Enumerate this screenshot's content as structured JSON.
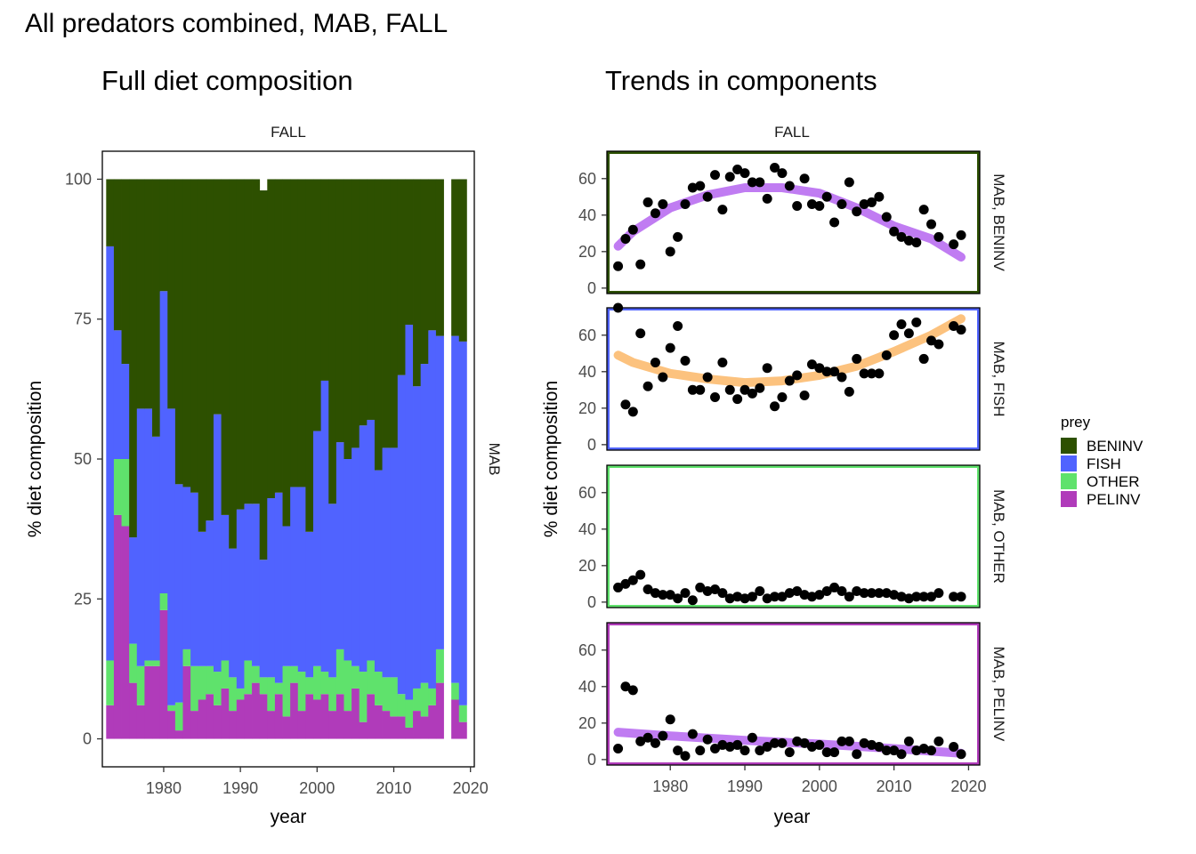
{
  "title": "All predators combined, MAB, FALL",
  "colors": {
    "BENINV": "#2d5000",
    "FISH": "#5063ff",
    "OTHER": "#5fe26c",
    "PELINV": "#b03bba",
    "trend_purple": "#c07cf2",
    "trend_orange": "#fcc27e"
  },
  "chart_data": [
    {
      "type": "bar",
      "stacked": true,
      "title": "Full diet composition",
      "facet_col": "FALL",
      "facet_row": "MAB",
      "xlabel": "year",
      "ylabel": "% diet composition",
      "xlim": [
        1972,
        2020.5
      ],
      "ylim": [
        -5,
        105
      ],
      "x_ticks": [
        "1980",
        "1990",
        "2000",
        "2010",
        "2020"
      ],
      "y_ticks": [
        "0",
        "25",
        "50",
        "75",
        "100"
      ],
      "years": [
        1973,
        1974,
        1975,
        1976,
        1977,
        1978,
        1979,
        1980,
        1981,
        1982,
        1983,
        1984,
        1985,
        1986,
        1987,
        1988,
        1989,
        1990,
        1991,
        1992,
        1993,
        1994,
        1995,
        1996,
        1997,
        1998,
        1999,
        2000,
        2001,
        2002,
        2003,
        2004,
        2005,
        2006,
        2007,
        2008,
        2009,
        2010,
        2011,
        2012,
        2013,
        2014,
        2015,
        2016,
        2018,
        2019
      ],
      "series": [
        {
          "name": "PELINV",
          "values": [
            6,
            40,
            38,
            10,
            6,
            13,
            13,
            23,
            5,
            1.5,
            13,
            5,
            7,
            8,
            6,
            9,
            5,
            7,
            8,
            10,
            8,
            5,
            8,
            4,
            10,
            5,
            8,
            7,
            8,
            5,
            8,
            5,
            9,
            3,
            8,
            6,
            5,
            4,
            4,
            2,
            5,
            4,
            6,
            10,
            7,
            3
          ]
        },
        {
          "name": "OTHER",
          "values": [
            8,
            10,
            12,
            7,
            7,
            1,
            1,
            3,
            1,
            5,
            3,
            8,
            6,
            5,
            6,
            5,
            6,
            2,
            6,
            3,
            3,
            6,
            2,
            9,
            3,
            7,
            3,
            6,
            4,
            6,
            8,
            9,
            4,
            9,
            6,
            6,
            6,
            7,
            4,
            5,
            4,
            6,
            3,
            6,
            3,
            3
          ]
        },
        {
          "name": "FISH",
          "values": [
            74,
            23,
            17,
            19,
            46,
            45,
            40,
            54,
            53,
            39,
            29,
            31,
            24,
            26,
            46,
            26,
            23,
            32,
            28,
            29,
            21,
            32,
            34,
            25,
            32,
            33,
            26,
            42,
            52,
            31,
            37,
            36,
            39,
            44,
            43,
            36,
            41,
            41,
            57,
            67,
            54,
            57,
            64,
            56,
            62,
            65
          ]
        },
        {
          "name": "BENINV",
          "values": [
            12,
            27,
            33,
            64,
            41,
            41,
            46,
            20,
            41,
            54.5,
            55,
            56,
            63,
            61,
            42,
            60,
            66,
            59,
            58,
            58,
            66,
            57,
            56,
            62,
            55,
            55,
            63,
            45,
            36,
            58,
            47,
            50,
            48,
            44,
            43,
            52,
            48,
            48,
            35,
            26,
            37,
            33,
            27,
            28,
            28,
            29
          ]
        }
      ]
    },
    {
      "type": "scatter",
      "title": "Trends in components",
      "facet_col": "FALL",
      "xlabel": "year",
      "ylabel": "% diet composition",
      "xlim": [
        1971.5,
        2021.5
      ],
      "ylim": [
        -3,
        75
      ],
      "x_ticks": [
        "1980",
        "1990",
        "2000",
        "2010",
        "2020"
      ],
      "y_ticks": [
        "0",
        "20",
        "40",
        "60"
      ],
      "panels": [
        {
          "label": "MAB, BENINV",
          "prey": "BENINV",
          "trend_color": "trend_purple",
          "points": [
            [
              1973,
              12
            ],
            [
              1974,
              27
            ],
            [
              1975,
              32
            ],
            [
              1976,
              13
            ],
            [
              1977,
              47
            ],
            [
              1978,
              41
            ],
            [
              1979,
              46
            ],
            [
              1980,
              20
            ],
            [
              1981,
              28
            ],
            [
              1982,
              46
            ],
            [
              1983,
              55
            ],
            [
              1984,
              56
            ],
            [
              1985,
              50
            ],
            [
              1986,
              62
            ],
            [
              1987,
              43
            ],
            [
              1988,
              61
            ],
            [
              1989,
              65
            ],
            [
              1990,
              63
            ],
            [
              1991,
              58
            ],
            [
              1992,
              58
            ],
            [
              1993,
              49
            ],
            [
              1994,
              66
            ],
            [
              1995,
              63
            ],
            [
              1996,
              56
            ],
            [
              1997,
              45
            ],
            [
              1998,
              60
            ],
            [
              1999,
              46
            ],
            [
              2000,
              45
            ],
            [
              2001,
              50
            ],
            [
              2002,
              36
            ],
            [
              2003,
              46
            ],
            [
              2004,
              58
            ],
            [
              2005,
              42
            ],
            [
              2006,
              46
            ],
            [
              2007,
              47
            ],
            [
              2008,
              50
            ],
            [
              2009,
              39
            ],
            [
              2010,
              31
            ],
            [
              2011,
              28
            ],
            [
              2012,
              26
            ],
            [
              2013,
              25
            ],
            [
              2014,
              43
            ],
            [
              2015,
              35
            ],
            [
              2016,
              28
            ],
            [
              2018,
              24
            ],
            [
              2019,
              29
            ]
          ],
          "trend": [
            [
              1973,
              23
            ],
            [
              1975,
              31
            ],
            [
              1980,
              44
            ],
            [
              1985,
              51
            ],
            [
              1990,
              55
            ],
            [
              1995,
              55
            ],
            [
              2000,
              52
            ],
            [
              2005,
              44
            ],
            [
              2010,
              34
            ],
            [
              2015,
              27
            ],
            [
              2019,
              17
            ]
          ]
        },
        {
          "label": "MAB, FISH",
          "prey": "FISH",
          "trend_color": "trend_orange",
          "points": [
            [
              1973,
              75
            ],
            [
              1974,
              22
            ],
            [
              1975,
              18
            ],
            [
              1976,
              61
            ],
            [
              1977,
              32
            ],
            [
              1978,
              45
            ],
            [
              1979,
              37
            ],
            [
              1980,
              53
            ],
            [
              1981,
              65
            ],
            [
              1982,
              46
            ],
            [
              1983,
              30
            ],
            [
              1984,
              30
            ],
            [
              1985,
              37
            ],
            [
              1986,
              26
            ],
            [
              1987,
              45
            ],
            [
              1988,
              30
            ],
            [
              1989,
              25
            ],
            [
              1990,
              30
            ],
            [
              1991,
              28
            ],
            [
              1992,
              31
            ],
            [
              1993,
              42
            ],
            [
              1994,
              21
            ],
            [
              1995,
              26
            ],
            [
              1996,
              35
            ],
            [
              1997,
              38
            ],
            [
              1998,
              27
            ],
            [
              1999,
              44
            ],
            [
              2000,
              42
            ],
            [
              2001,
              40
            ],
            [
              2002,
              40
            ],
            [
              2003,
              37
            ],
            [
              2004,
              29
            ],
            [
              2005,
              47
            ],
            [
              2006,
              39
            ],
            [
              2007,
              39
            ],
            [
              2008,
              39
            ],
            [
              2009,
              49
            ],
            [
              2010,
              60
            ],
            [
              2011,
              66
            ],
            [
              2012,
              61
            ],
            [
              2013,
              67
            ],
            [
              2014,
              47
            ],
            [
              2015,
              57
            ],
            [
              2016,
              55
            ],
            [
              2018,
              65
            ],
            [
              2019,
              63
            ]
          ],
          "trend": [
            [
              1973,
              49
            ],
            [
              1975,
              45
            ],
            [
              1980,
              39
            ],
            [
              1985,
              36
            ],
            [
              1990,
              34
            ],
            [
              1995,
              35
            ],
            [
              2000,
              38
            ],
            [
              2005,
              43
            ],
            [
              2010,
              51
            ],
            [
              2015,
              60
            ],
            [
              2019,
              69
            ]
          ]
        },
        {
          "label": "MAB, OTHER",
          "prey": "OTHER",
          "trend_color": "trend_purple",
          "points": [
            [
              1973,
              8
            ],
            [
              1974,
              10
            ],
            [
              1975,
              12
            ],
            [
              1976,
              15
            ],
            [
              1977,
              7
            ],
            [
              1978,
              5
            ],
            [
              1979,
              4
            ],
            [
              1980,
              4
            ],
            [
              1981,
              2
            ],
            [
              1982,
              5
            ],
            [
              1983,
              1
            ],
            [
              1984,
              8
            ],
            [
              1985,
              6
            ],
            [
              1986,
              7
            ],
            [
              1987,
              5
            ],
            [
              1988,
              2
            ],
            [
              1989,
              3
            ],
            [
              1990,
              2
            ],
            [
              1991,
              3
            ],
            [
              1992,
              6
            ],
            [
              1993,
              2
            ],
            [
              1994,
              3
            ],
            [
              1995,
              3
            ],
            [
              1996,
              5
            ],
            [
              1997,
              6
            ],
            [
              1998,
              4
            ],
            [
              1999,
              3
            ],
            [
              2000,
              4
            ],
            [
              2001,
              6
            ],
            [
              2002,
              8
            ],
            [
              2003,
              6
            ],
            [
              2004,
              3
            ],
            [
              2005,
              6
            ],
            [
              2006,
              5
            ],
            [
              2007,
              5
            ],
            [
              2008,
              5
            ],
            [
              2009,
              5
            ],
            [
              2010,
              4
            ],
            [
              2011,
              3
            ],
            [
              2012,
              2
            ],
            [
              2013,
              3
            ],
            [
              2014,
              3
            ],
            [
              2015,
              3
            ],
            [
              2016,
              5
            ],
            [
              2018,
              3
            ],
            [
              2019,
              3
            ]
          ],
          "trend": []
        },
        {
          "label": "MAB, PELINV",
          "prey": "PELINV",
          "trend_color": "trend_purple",
          "points": [
            [
              1973,
              6
            ],
            [
              1974,
              40
            ],
            [
              1975,
              38
            ],
            [
              1976,
              10
            ],
            [
              1977,
              12
            ],
            [
              1978,
              9
            ],
            [
              1979,
              13
            ],
            [
              1980,
              22
            ],
            [
              1981,
              5
            ],
            [
              1982,
              2
            ],
            [
              1983,
              14
            ],
            [
              1984,
              5
            ],
            [
              1985,
              11
            ],
            [
              1986,
              6
            ],
            [
              1987,
              8
            ],
            [
              1988,
              7
            ],
            [
              1989,
              8
            ],
            [
              1990,
              5
            ],
            [
              1991,
              12
            ],
            [
              1992,
              5
            ],
            [
              1993,
              7
            ],
            [
              1994,
              9
            ],
            [
              1995,
              9
            ],
            [
              1996,
              4
            ],
            [
              1997,
              10
            ],
            [
              1998,
              9
            ],
            [
              1999,
              7
            ],
            [
              2000,
              8
            ],
            [
              2001,
              4
            ],
            [
              2002,
              4
            ],
            [
              2003,
              10
            ],
            [
              2004,
              10
            ],
            [
              2005,
              3
            ],
            [
              2006,
              9
            ],
            [
              2007,
              8
            ],
            [
              2008,
              7
            ],
            [
              2009,
              5
            ],
            [
              2010,
              5
            ],
            [
              2011,
              3
            ],
            [
              2012,
              10
            ],
            [
              2013,
              5
            ],
            [
              2014,
              6
            ],
            [
              2015,
              5
            ],
            [
              2016,
              10
            ],
            [
              2018,
              7
            ],
            [
              2019,
              3
            ]
          ],
          "trend": [
            [
              1973,
              15
            ],
            [
              1980,
              13
            ],
            [
              1990,
              10.5
            ],
            [
              2000,
              8.5
            ],
            [
              2010,
              6
            ],
            [
              2019,
              3.5
            ]
          ]
        }
      ]
    }
  ],
  "legend": {
    "title": "prey",
    "items": [
      "BENINV",
      "FISH",
      "OTHER",
      "PELINV"
    ]
  }
}
